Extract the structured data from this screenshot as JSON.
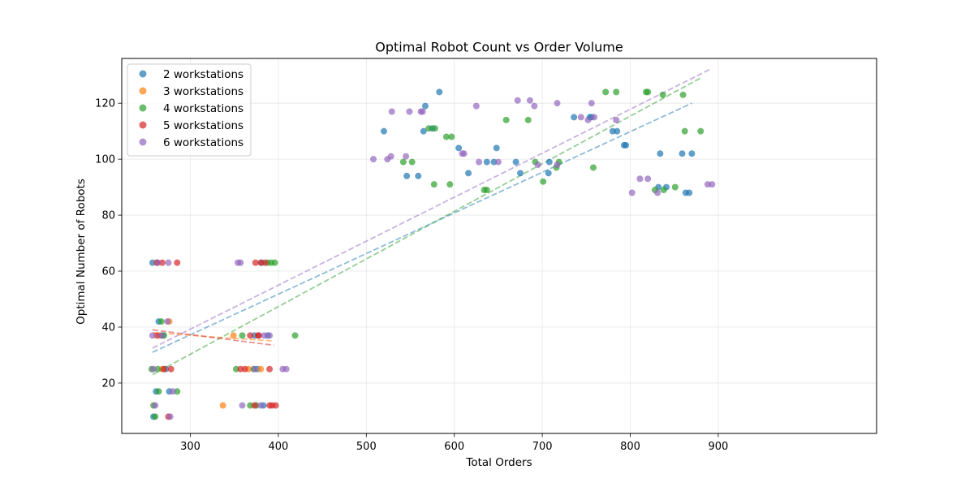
{
  "chart_data": {
    "type": "scatter",
    "title": "Optimal Robot Count vs Order Volume",
    "xlabel": "Total Orders",
    "ylabel": "Optimal Number of Robots",
    "xlim": [
      222,
      1080
    ],
    "ylim": [
      2,
      136
    ],
    "xticks": [
      300,
      400,
      500,
      600,
      700,
      800,
      900
    ],
    "yticks": [
      20,
      40,
      60,
      80,
      100,
      120
    ],
    "grid": true,
    "legend": "top-left",
    "series": [
      {
        "name": "2 workstations",
        "color": "#1f77b4",
        "points": [
          [
            257,
            63
          ],
          [
            261,
            17
          ],
          [
            264,
            42
          ],
          [
            258,
            8
          ],
          [
            272,
            25
          ],
          [
            276,
            17
          ],
          [
            268,
            37
          ],
          [
            520,
            110
          ],
          [
            546,
            94
          ],
          [
            559,
            94
          ],
          [
            565,
            110
          ],
          [
            567,
            119
          ],
          [
            575,
            111
          ],
          [
            583,
            124
          ],
          [
            605,
            104
          ],
          [
            616,
            95
          ],
          [
            637,
            99
          ],
          [
            645,
            99
          ],
          [
            648,
            104
          ],
          [
            670,
            99
          ],
          [
            675,
            95
          ],
          [
            707,
            95
          ],
          [
            708,
            99
          ],
          [
            736,
            115
          ],
          [
            754,
            115
          ],
          [
            756,
            115
          ],
          [
            780,
            110
          ],
          [
            785,
            110
          ],
          [
            793,
            105
          ],
          [
            795,
            105
          ],
          [
            832,
            90
          ],
          [
            834,
            102
          ],
          [
            841,
            90
          ],
          [
            859,
            102
          ],
          [
            863,
            88
          ],
          [
            867,
            88
          ],
          [
            870,
            102
          ],
          [
            373,
            37
          ],
          [
            376,
            25
          ],
          [
            381,
            63
          ],
          [
            383,
            12
          ],
          [
            388,
            37
          ]
        ],
        "trend": [
          [
            257,
            31
          ],
          [
            870,
            120
          ]
        ]
      },
      {
        "name": "3 workstations",
        "color": "#ff7f0e",
        "points": [
          [
            262,
            63
          ],
          [
            265,
            37
          ],
          [
            268,
            25
          ],
          [
            276,
            42
          ],
          [
            337,
            12
          ],
          [
            349,
            37
          ],
          [
            380,
            25
          ],
          [
            366,
            25
          ]
        ],
        "trend": [
          [
            257,
            38
          ],
          [
            395,
            35
          ]
        ]
      },
      {
        "name": "4 workstations",
        "color": "#2ca02c",
        "points": [
          [
            256,
            25
          ],
          [
            258,
            12
          ],
          [
            260,
            8
          ],
          [
            263,
            25
          ],
          [
            264,
            17
          ],
          [
            267,
            42
          ],
          [
            270,
            37
          ],
          [
            285,
            17
          ],
          [
            352,
            25
          ],
          [
            359,
            37
          ],
          [
            368,
            12
          ],
          [
            372,
            25
          ],
          [
            375,
            12
          ],
          [
            388,
            63
          ],
          [
            392,
            63
          ],
          [
            396,
            63
          ],
          [
            419,
            37
          ],
          [
            542,
            99
          ],
          [
            552,
            99
          ],
          [
            571,
            111
          ],
          [
            577,
            91
          ],
          [
            578,
            111
          ],
          [
            591,
            108
          ],
          [
            595,
            91
          ],
          [
            597,
            108
          ],
          [
            634,
            89
          ],
          [
            637,
            89
          ],
          [
            659,
            114
          ],
          [
            684,
            114
          ],
          [
            692,
            99
          ],
          [
            701,
            92
          ],
          [
            716,
            97
          ],
          [
            719,
            99
          ],
          [
            758,
            97
          ],
          [
            772,
            124
          ],
          [
            784,
            124
          ],
          [
            818,
            124
          ],
          [
            820,
            124
          ],
          [
            828,
            89
          ],
          [
            837,
            123
          ],
          [
            838,
            89
          ],
          [
            851,
            90
          ],
          [
            860,
            123
          ],
          [
            862,
            110
          ],
          [
            880,
            110
          ]
        ],
        "trend": [
          [
            257,
            23
          ],
          [
            880,
            129
          ]
        ]
      },
      {
        "name": "5 workstations",
        "color": "#d62728",
        "points": [
          [
            262,
            63
          ],
          [
            268,
            63
          ],
          [
            262,
            37
          ],
          [
            270,
            25
          ],
          [
            278,
            25
          ],
          [
            275,
            8
          ],
          [
            285,
            63
          ],
          [
            357,
            25
          ],
          [
            362,
            25
          ],
          [
            368,
            37
          ],
          [
            374,
            63
          ],
          [
            377,
            37
          ],
          [
            380,
            63
          ],
          [
            385,
            63
          ],
          [
            373,
            12
          ],
          [
            390,
            12
          ],
          [
            393,
            12
          ],
          [
            397,
            12
          ],
          [
            390,
            25
          ],
          [
            378,
            37
          ]
        ],
        "trend": [
          [
            257,
            39
          ],
          [
            395,
            33.5
          ]
        ]
      },
      {
        "name": "6 workstations",
        "color": "#9467bd",
        "points": [
          [
            257,
            37
          ],
          [
            258,
            25
          ],
          [
            260,
            12
          ],
          [
            263,
            63
          ],
          [
            267,
            37
          ],
          [
            274,
            42
          ],
          [
            275,
            63
          ],
          [
            277,
            8
          ],
          [
            280,
            17
          ],
          [
            354,
            63
          ],
          [
            357,
            63
          ],
          [
            359,
            12
          ],
          [
            373,
            25
          ],
          [
            380,
            12
          ],
          [
            384,
            37
          ],
          [
            390,
            37
          ],
          [
            405,
            25
          ],
          [
            409,
            25
          ],
          [
            508,
            100
          ],
          [
            524,
            100
          ],
          [
            528,
            101
          ],
          [
            529,
            117
          ],
          [
            545,
            101
          ],
          [
            549,
            117
          ],
          [
            562,
            117
          ],
          [
            564,
            117
          ],
          [
            609,
            102
          ],
          [
            611,
            102
          ],
          [
            625,
            119
          ],
          [
            628,
            99
          ],
          [
            650,
            99
          ],
          [
            672,
            121
          ],
          [
            686,
            121
          ],
          [
            691,
            119
          ],
          [
            695,
            98
          ],
          [
            717,
            120
          ],
          [
            717,
            98
          ],
          [
            744,
            115
          ],
          [
            752,
            114
          ],
          [
            756,
            120
          ],
          [
            759,
            115
          ],
          [
            784,
            114
          ],
          [
            802,
            88
          ],
          [
            811,
            93
          ],
          [
            820,
            93
          ],
          [
            831,
            88
          ],
          [
            888,
            91
          ],
          [
            893,
            91
          ]
        ],
        "trend": [
          [
            257,
            32.5
          ],
          [
            890,
            132
          ]
        ]
      }
    ]
  }
}
